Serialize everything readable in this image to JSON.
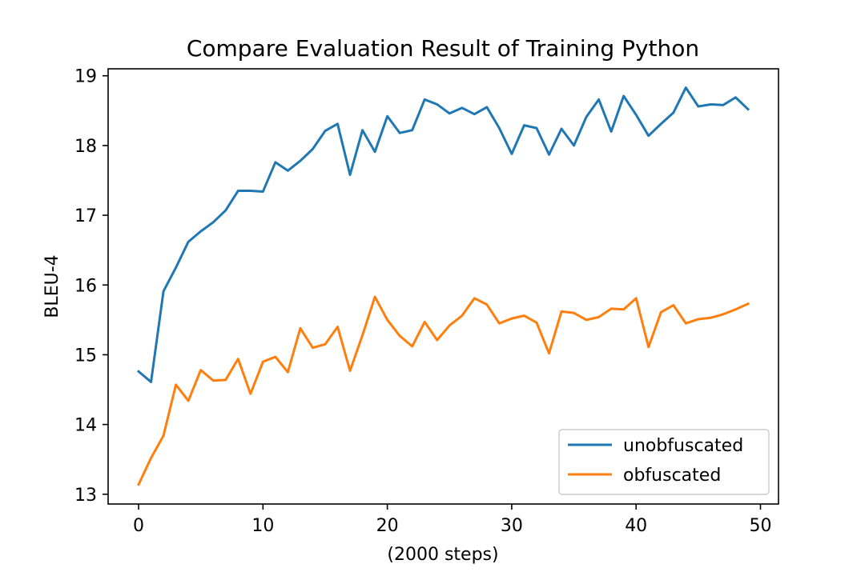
{
  "chart_data": {
    "type": "line",
    "title": "Compare Evaluation Result of Training Python",
    "xlabel": "(2000 steps)",
    "ylabel": "BLEU-4",
    "xlim": [
      -2.45,
      51.45
    ],
    "ylim": [
      12.86,
      19.1
    ],
    "xticks": [
      0,
      10,
      20,
      30,
      40,
      50
    ],
    "yticks": [
      13,
      14,
      15,
      16,
      17,
      18,
      19
    ],
    "grid": false,
    "legend_position": "lower-right",
    "x": [
      0,
      1,
      2,
      3,
      4,
      5,
      6,
      7,
      8,
      9,
      10,
      11,
      12,
      13,
      14,
      15,
      16,
      17,
      18,
      19,
      20,
      21,
      22,
      23,
      24,
      25,
      26,
      27,
      28,
      29,
      30,
      31,
      32,
      33,
      34,
      35,
      36,
      37,
      38,
      39,
      40,
      41,
      42,
      43,
      44,
      45,
      46,
      47,
      48,
      49
    ],
    "series": [
      {
        "name": "unobfuscated",
        "color": "#1f77b4",
        "values": [
          14.76,
          14.61,
          15.91,
          16.25,
          16.62,
          16.77,
          16.9,
          17.07,
          17.35,
          17.35,
          17.34,
          17.76,
          17.64,
          17.78,
          17.95,
          18.21,
          18.31,
          17.58,
          18.22,
          17.91,
          18.42,
          18.18,
          18.22,
          18.66,
          18.59,
          18.46,
          18.54,
          18.45,
          18.55,
          18.25,
          17.88,
          18.29,
          18.25,
          17.87,
          18.24,
          18.0,
          18.41,
          18.66,
          18.2,
          18.71,
          18.44,
          18.14,
          18.31,
          18.47,
          18.83,
          18.56,
          18.59,
          18.58,
          18.69,
          18.52
        ]
      },
      {
        "name": "obfuscated",
        "color": "#ff7f0e",
        "values": [
          13.14,
          13.52,
          13.84,
          14.57,
          14.34,
          14.78,
          14.63,
          14.64,
          14.94,
          14.44,
          14.9,
          14.97,
          14.75,
          15.38,
          15.1,
          15.15,
          15.4,
          14.77,
          15.28,
          15.83,
          15.5,
          15.27,
          15.12,
          15.47,
          15.21,
          15.42,
          15.56,
          15.81,
          15.72,
          15.45,
          15.52,
          15.56,
          15.46,
          15.02,
          15.62,
          15.6,
          15.5,
          15.54,
          15.66,
          15.65,
          15.81,
          15.11,
          15.61,
          15.71,
          15.45,
          15.51,
          15.53,
          15.58,
          15.65,
          15.73
        ]
      }
    ]
  }
}
